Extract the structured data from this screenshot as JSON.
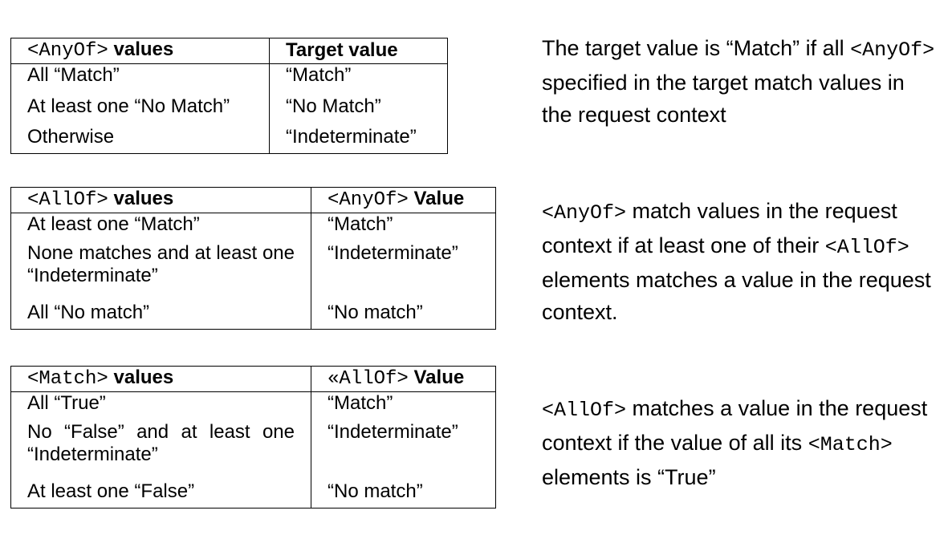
{
  "tables": [
    {
      "header": {
        "col1_tag": "<AnyOf>",
        "col1_text": " values",
        "col2_tag": "",
        "col2_text": "Target value"
      },
      "rows": [
        {
          "c1": "All “Match”",
          "c2": "“Match”"
        },
        {
          "c1": "At least one “No Match”",
          "c2": "“No Match”"
        },
        {
          "c1": "Otherwise",
          "c2": "“Indeterminate”"
        }
      ],
      "note": {
        "p1": "The target value is “Match” if all ",
        "code1": "<AnyOf>",
        "p2": " specified in the target match values in the request context",
        "code2": "",
        "p3": ""
      }
    },
    {
      "header": {
        "col1_tag": "<AllOf>",
        "col1_text": " values",
        "col2_tag": "<AnyOf>",
        "col2_text": " Value"
      },
      "rows": [
        {
          "c1": "At least one “Match”",
          "c2": "“Match”"
        },
        {
          "c1": "None matches and at least one “Indeterminate”",
          "c2": "“Indeterminate”"
        },
        {
          "c1": "All “No match”",
          "c2": "“No match”"
        }
      ],
      "note": {
        "p1": "",
        "code1": "<AnyOf>",
        "p2": " match values in the request context if at least one of their ",
        "code2": "<AllOf>",
        "p3": " elements matches a value in the request context."
      }
    },
    {
      "header": {
        "col1_tag": "<Match>",
        "col1_text": " values",
        "col2_tag": "«AllOf>",
        "col2_text": " Value"
      },
      "rows": [
        {
          "c1": "All “True”",
          "c2": "“Match”"
        },
        {
          "c1": "No “False” and at least one “Indeterminate”",
          "c2": "“Indeterminate”"
        },
        {
          "c1": "At least one “False”",
          "c2": "“No match”"
        }
      ],
      "note": {
        "p1": "",
        "code1": "<AllOf>",
        "p2": " matches a value in the request context if the value of all its ",
        "code2": "<Match>",
        "p3": " elements is “True”"
      }
    }
  ]
}
